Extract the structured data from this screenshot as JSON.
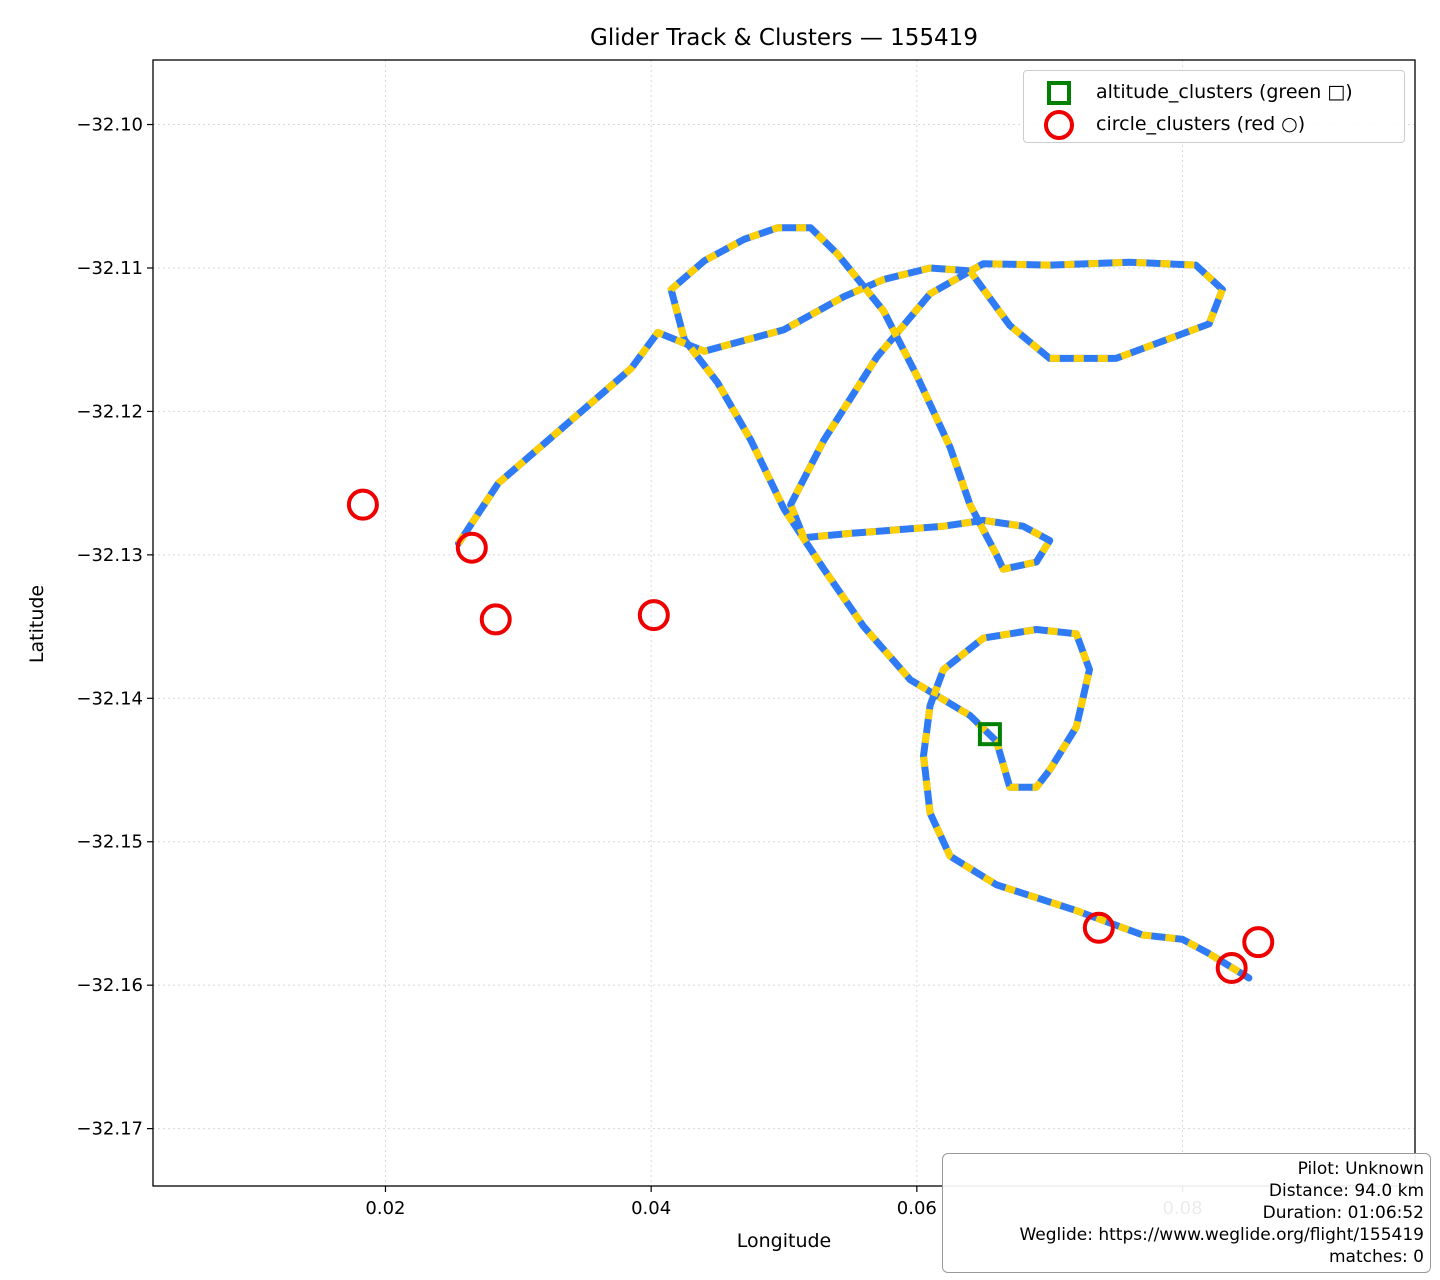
{
  "chart_data": {
    "type": "line",
    "title": "Glider Track & Clusters — 155419",
    "xlabel": "Longitude",
    "ylabel": "Latitude",
    "xlim": [
      0.0025,
      0.0975
    ],
    "ylim": [
      -32.174,
      -32.0955
    ],
    "x_ticks": [
      0.02,
      0.04,
      0.06,
      0.08
    ],
    "x_tick_labels": [
      "0.02",
      "0.04",
      "0.06",
      "0.08"
    ],
    "y_ticks": [
      -32.1,
      -32.11,
      -32.12,
      -32.13,
      -32.14,
      -32.15,
      -32.16,
      -32.17
    ],
    "y_tick_labels": [
      "−32.10",
      "−32.11",
      "−32.12",
      "−32.13",
      "−32.14",
      "−32.15",
      "−32.16",
      "−32.17"
    ],
    "grid": true,
    "legend_position": "top-right",
    "colors": {
      "track_primary": "#2f7bf5",
      "track_climb": "#ffd000",
      "altitude_marker": "#008000",
      "circle_marker": "#ee0000"
    },
    "series": [
      {
        "name": "track",
        "points": [
          [
            0.0255,
            -32.1292
          ],
          [
            0.0285,
            -32.125
          ],
          [
            0.0335,
            -32.121
          ],
          [
            0.0385,
            -32.117
          ],
          [
            0.0405,
            -32.1145
          ],
          [
            0.044,
            -32.1158
          ],
          [
            0.05,
            -32.1143
          ],
          [
            0.0545,
            -32.112
          ],
          [
            0.0575,
            -32.1108
          ],
          [
            0.061,
            -32.11
          ],
          [
            0.064,
            -32.1102
          ],
          [
            0.067,
            -32.114
          ],
          [
            0.07,
            -32.1163
          ],
          [
            0.075,
            -32.1163
          ],
          [
            0.082,
            -32.1139
          ],
          [
            0.083,
            -32.1115
          ],
          [
            0.081,
            -32.1098
          ],
          [
            0.076,
            -32.1096
          ],
          [
            0.07,
            -32.1098
          ],
          [
            0.065,
            -32.1097
          ],
          [
            0.061,
            -32.1118
          ],
          [
            0.057,
            -32.1162
          ],
          [
            0.053,
            -32.122
          ],
          [
            0.0505,
            -32.1265
          ],
          [
            0.0515,
            -32.1288
          ],
          [
            0.055,
            -32.1285
          ],
          [
            0.062,
            -32.128
          ],
          [
            0.065,
            -32.1276
          ],
          [
            0.068,
            -32.128
          ],
          [
            0.07,
            -32.129
          ],
          [
            0.069,
            -32.1305
          ],
          [
            0.0665,
            -32.131
          ],
          [
            0.066,
            -32.13
          ],
          [
            0.064,
            -32.1265
          ],
          [
            0.0625,
            -32.1225
          ],
          [
            0.06,
            -32.1175
          ],
          [
            0.0575,
            -32.113
          ],
          [
            0.054,
            -32.109
          ],
          [
            0.052,
            -32.1072
          ],
          [
            0.0495,
            -32.1072
          ],
          [
            0.047,
            -32.108
          ],
          [
            0.044,
            -32.1095
          ],
          [
            0.0415,
            -32.1115
          ],
          [
            0.0425,
            -32.115
          ],
          [
            0.045,
            -32.118
          ],
          [
            0.0475,
            -32.122
          ],
          [
            0.05,
            -32.1268
          ],
          [
            0.053,
            -32.131
          ],
          [
            0.056,
            -32.135
          ],
          [
            0.0595,
            -32.1387
          ],
          [
            0.064,
            -32.1412
          ],
          [
            0.066,
            -32.143
          ],
          [
            0.067,
            -32.1462
          ],
          [
            0.069,
            -32.1462
          ],
          [
            0.07,
            -32.145
          ],
          [
            0.072,
            -32.142
          ],
          [
            0.073,
            -32.138
          ],
          [
            0.072,
            -32.1355
          ],
          [
            0.069,
            -32.1352
          ],
          [
            0.065,
            -32.1358
          ],
          [
            0.062,
            -32.138
          ],
          [
            0.061,
            -32.1405
          ],
          [
            0.0605,
            -32.144
          ],
          [
            0.061,
            -32.148
          ],
          [
            0.0625,
            -32.151
          ],
          [
            0.066,
            -32.153
          ],
          [
            0.072,
            -32.1548
          ],
          [
            0.077,
            -32.1565
          ],
          [
            0.08,
            -32.1568
          ],
          [
            0.082,
            -32.1578
          ],
          [
            0.085,
            -32.1595
          ]
        ]
      },
      {
        "name": "altitude_clusters (green □)",
        "points": [
          [
            0.0655,
            -32.1425
          ]
        ]
      },
      {
        "name": "circle_clusters (red ○)",
        "points": [
          [
            0.0183,
            -32.1265
          ],
          [
            0.0265,
            -32.1295
          ],
          [
            0.0283,
            -32.1345
          ],
          [
            0.0402,
            -32.1342
          ],
          [
            0.0737,
            -32.156
          ],
          [
            0.0837,
            -32.1588
          ],
          [
            0.0857,
            -32.157
          ]
        ]
      }
    ],
    "info": {
      "pilot": "Pilot: Unknown",
      "distance": "Distance: 94.0 km",
      "duration": "Duration: 01:06:52",
      "weglide": "Weglide: https://www.weglide.org/flight/155419",
      "matches": "matches: 0"
    }
  }
}
